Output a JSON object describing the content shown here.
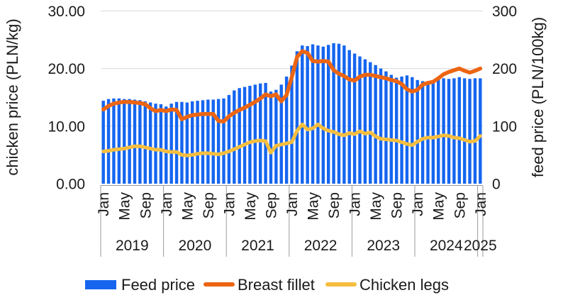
{
  "chart_data": {
    "type": "combo-bar-line",
    "title": "",
    "left_axis": {
      "title": "chicken price (PLN/kg)",
      "tick_labels": [
        "0.00",
        "10.00",
        "20.00",
        "30.00"
      ],
      "tick_values": [
        0,
        10,
        20,
        30
      ],
      "range": [
        0,
        30
      ],
      "grid": true
    },
    "right_axis": {
      "title": "feed price (PLN/100kg)",
      "tick_labels": [
        "0",
        "100",
        "200",
        "300"
      ],
      "tick_values": [
        0,
        100,
        200,
        300
      ],
      "range": [
        0,
        300
      ]
    },
    "x_axis": {
      "years": [
        {
          "label": "2019",
          "months": 12
        },
        {
          "label": "2020",
          "months": 12
        },
        {
          "label": "2021",
          "months": 12
        },
        {
          "label": "2022",
          "months": 12
        },
        {
          "label": "2023",
          "months": 12
        },
        {
          "label": "2024",
          "months": 12
        },
        {
          "label": "2025",
          "months": 1
        }
      ],
      "month_tick_labels": [
        "Jan",
        "May",
        "Sep"
      ],
      "month_tick_offsets": [
        0,
        4,
        8
      ]
    },
    "legend": [
      "Feed price",
      "Breast fillet",
      "Chicken legs"
    ],
    "legend_position": "bottom",
    "series": [
      {
        "name": "Feed price",
        "type": "bar",
        "axis": "right",
        "unit": "PLN/100kg",
        "color": "#1565EF",
        "values": [
          144,
          147,
          148,
          148,
          147,
          147,
          146,
          145,
          143,
          141,
          139,
          138,
          134,
          139,
          142,
          142,
          141,
          143,
          144,
          145,
          146,
          146,
          147,
          148,
          154,
          162,
          166,
          168,
          170,
          172,
          174,
          175,
          160,
          163,
          172,
          186,
          205,
          230,
          240,
          239,
          242,
          240,
          238,
          241,
          244,
          243,
          240,
          232,
          226,
          221,
          216,
          211,
          206,
          200,
          195,
          189,
          184,
          186,
          188,
          185,
          180,
          178,
          176,
          179,
          182,
          183,
          182,
          183,
          185,
          183,
          182,
          183,
          183
        ]
      },
      {
        "name": "Breast fillet",
        "type": "line",
        "axis": "left",
        "unit": "PLN/kg",
        "color": "#ED6512",
        "values": [
          12.9,
          13.5,
          13.9,
          14.1,
          14.2,
          14.2,
          14.1,
          14.0,
          13.8,
          13.1,
          12.6,
          12.8,
          12.6,
          12.9,
          12.8,
          11.2,
          11.6,
          11.9,
          12.0,
          12.1,
          12.1,
          12.1,
          10.9,
          10.8,
          11.7,
          12.3,
          12.8,
          13.2,
          13.7,
          14.2,
          14.8,
          15.5,
          15.2,
          15.5,
          14.3,
          15.4,
          18.5,
          22.0,
          23.0,
          22.7,
          21.3,
          21.2,
          21.3,
          21.2,
          19.7,
          19.1,
          18.7,
          18.1,
          17.9,
          18.6,
          18.9,
          18.9,
          18.7,
          18.5,
          18.3,
          18.0,
          17.8,
          17.3,
          16.4,
          16.0,
          16.3,
          17.2,
          17.5,
          17.7,
          18.3,
          19.0,
          19.4,
          19.7,
          20.0,
          19.6,
          19.3,
          19.6,
          20.0
        ]
      },
      {
        "name": "Chicken legs",
        "type": "line",
        "axis": "left",
        "unit": "PLN/kg",
        "color": "#F6BE3F",
        "values": [
          5.6,
          5.7,
          5.9,
          6.0,
          6.1,
          6.3,
          6.5,
          6.5,
          6.3,
          6.1,
          5.9,
          5.9,
          5.6,
          5.5,
          5.5,
          5.0,
          4.9,
          5.0,
          5.2,
          5.3,
          5.3,
          5.2,
          5.1,
          5.3,
          5.6,
          6.0,
          6.4,
          6.8,
          7.2,
          7.4,
          7.5,
          7.4,
          5.4,
          6.6,
          6.8,
          7.0,
          7.2,
          9.2,
          10.3,
          9.4,
          9.6,
          10.3,
          9.6,
          9.2,
          9.0,
          8.6,
          8.4,
          8.8,
          8.6,
          9.1,
          8.7,
          8.9,
          8.2,
          7.8,
          7.7,
          7.6,
          7.5,
          7.2,
          6.9,
          6.7,
          7.3,
          7.8,
          8.0,
          8.0,
          8.2,
          8.4,
          8.3,
          8.0,
          7.9,
          7.6,
          7.3,
          7.4,
          8.3
        ]
      }
    ],
    "colors": {
      "grid": "#D9D9D9",
      "axis_band": "#9A9A9A",
      "text": "#1A1A1A"
    }
  }
}
